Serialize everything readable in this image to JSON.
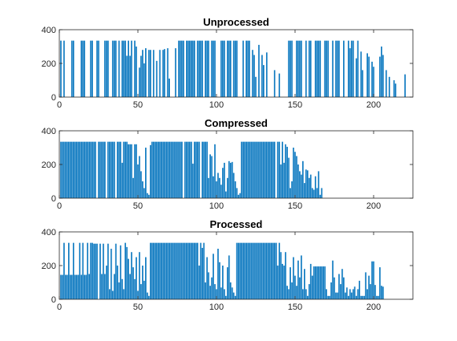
{
  "chart_data": [
    {
      "type": "bar",
      "title": "Unprocessed",
      "xlim": [
        0,
        225
      ],
      "ylim": [
        0,
        400
      ],
      "xticks": [
        0,
        50,
        100,
        150,
        200
      ],
      "yticks": [
        0,
        200,
        400
      ],
      "xtick_labels": [
        "0",
        "50",
        "100",
        "150",
        "200"
      ],
      "ytick_labels": [
        "0",
        "200",
        "400"
      ],
      "bar_color": "#0072BD",
      "values": [
        335,
        0,
        335,
        0,
        0,
        0,
        0,
        335,
        335,
        0,
        0,
        0,
        0,
        335,
        335,
        335,
        0,
        0,
        0,
        335,
        335,
        0,
        0,
        335,
        335,
        0,
        0,
        0,
        335,
        335,
        335,
        0,
        0,
        335,
        335,
        335,
        0,
        335,
        0,
        335,
        335,
        335,
        245,
        335,
        245,
        335,
        0,
        335,
        300,
        0,
        175,
        245,
        280,
        200,
        290,
        0,
        280,
        280,
        0,
        280,
        0,
        215,
        0,
        280,
        0,
        280,
        285,
        0,
        290,
        110,
        0,
        0,
        0,
        290,
        0,
        335,
        335,
        335,
        335,
        0,
        335,
        335,
        335,
        335,
        335,
        335,
        0,
        335,
        335,
        335,
        335,
        0,
        335,
        335,
        335,
        0,
        335,
        335,
        335,
        0,
        0,
        0,
        335,
        335,
        335,
        0,
        335,
        335,
        335,
        0,
        335,
        335,
        335,
        0,
        0,
        0,
        335,
        0,
        335,
        335,
        335,
        0,
        280,
        250,
        120,
        0,
        310,
        0,
        250,
        190,
        0,
        265,
        0,
        0,
        0,
        0,
        160,
        0,
        0,
        140,
        0,
        0,
        0,
        0,
        0,
        335,
        335,
        335,
        0,
        0,
        335,
        335,
        335,
        335,
        0,
        0,
        335,
        0,
        335,
        335,
        0,
        0,
        335,
        335,
        335,
        335,
        0,
        0,
        335,
        335,
        335,
        0,
        0,
        335,
        0,
        335,
        335,
        335,
        0,
        0,
        335,
        0,
        0,
        335,
        290,
        335,
        335,
        0,
        230,
        335,
        0,
        270,
        160,
        0,
        0,
        260,
        240,
        0,
        210,
        180,
        0,
        0,
        0,
        240,
        300,
        250,
        0,
        160,
        0,
        120,
        0,
        0,
        100,
        80,
        0,
        0,
        0,
        0,
        0,
        135
      ]
    },
    {
      "type": "bar",
      "title": "Compressed",
      "xlim": [
        0,
        225
      ],
      "ylim": [
        0,
        400
      ],
      "xticks": [
        0,
        50,
        100,
        150,
        200
      ],
      "yticks": [
        0,
        200,
        400
      ],
      "xtick_labels": [
        "0",
        "50",
        "100",
        "150",
        "200"
      ],
      "ytick_labels": [
        "0",
        "200",
        "400"
      ],
      "bar_color": "#0072BD",
      "values": [
        335,
        335,
        335,
        335,
        335,
        335,
        335,
        335,
        335,
        335,
        335,
        335,
        335,
        335,
        335,
        335,
        335,
        335,
        335,
        335,
        335,
        335,
        335,
        0,
        335,
        335,
        335,
        335,
        335,
        0,
        335,
        335,
        335,
        335,
        335,
        0,
        335,
        335,
        335,
        210,
        335,
        335,
        335,
        320,
        320,
        320,
        120,
        320,
        320,
        200,
        250,
        160,
        100,
        60,
        300,
        30,
        20,
        315,
        335,
        335,
        335,
        335,
        335,
        335,
        335,
        335,
        335,
        335,
        335,
        335,
        335,
        335,
        335,
        335,
        335,
        335,
        335,
        335,
        0,
        335,
        335,
        335,
        335,
        335,
        205,
        335,
        335,
        335,
        335,
        0,
        335,
        335,
        335,
        335,
        120,
        260,
        250,
        130,
        320,
        100,
        150,
        120,
        80,
        180,
        210,
        40,
        120,
        220,
        210,
        215,
        150,
        100,
        60,
        20,
        30,
        335,
        335,
        335,
        335,
        335,
        335,
        335,
        335,
        335,
        335,
        335,
        335,
        335,
        335,
        335,
        335,
        335,
        335,
        335,
        335,
        335,
        335,
        0,
        335,
        335,
        200,
        335,
        210,
        320,
        305,
        240,
        60,
        100,
        300,
        275,
        250,
        200,
        160,
        140,
        220,
        90,
        170,
        165,
        120,
        140,
        60,
        50,
        130,
        60,
        160,
        20,
        60
      ]
    },
    {
      "type": "bar",
      "title": "Processed",
      "xlim": [
        0,
        225
      ],
      "ylim": [
        0,
        400
      ],
      "xticks": [
        0,
        50,
        100,
        150,
        200
      ],
      "yticks": [
        0,
        200,
        400
      ],
      "xtick_labels": [
        "0",
        "50",
        "100",
        "150",
        "200"
      ],
      "ytick_labels": [
        "0",
        "200",
        "400"
      ],
      "bar_color": "#0072BD",
      "values": [
        145,
        145,
        335,
        145,
        145,
        335,
        145,
        145,
        335,
        145,
        145,
        145,
        335,
        145,
        335,
        145,
        145,
        335,
        150,
        335,
        335,
        330,
        330,
        330,
        0,
        330,
        150,
        330,
        150,
        200,
        330,
        60,
        300,
        50,
        150,
        330,
        200,
        100,
        320,
        120,
        60,
        335,
        310,
        240,
        150,
        280,
        190,
        120,
        250,
        50,
        280,
        90,
        200,
        110,
        250,
        40,
        20,
        335,
        335,
        335,
        335,
        335,
        335,
        335,
        335,
        335,
        335,
        335,
        335,
        335,
        335,
        335,
        335,
        335,
        335,
        335,
        335,
        335,
        335,
        335,
        335,
        335,
        335,
        335,
        335,
        335,
        335,
        335,
        200,
        335,
        305,
        335,
        100,
        250,
        160,
        80,
        130,
        270,
        90,
        60,
        300,
        220,
        70,
        200,
        60,
        20,
        190,
        260,
        100,
        70,
        40,
        20,
        335,
        335,
        335,
        335,
        335,
        335,
        335,
        335,
        335,
        335,
        335,
        335,
        335,
        335,
        335,
        335,
        335,
        335,
        335,
        335,
        335,
        335,
        335,
        335,
        335,
        335,
        200,
        335,
        280,
        210,
        200,
        280,
        80,
        60,
        190,
        100,
        250,
        140,
        80,
        230,
        130,
        260,
        60,
        180,
        60,
        20,
        90,
        210,
        140,
        195,
        195,
        195,
        195,
        195,
        195,
        195,
        195,
        60,
        20,
        20,
        100,
        230,
        130,
        40,
        40,
        150,
        90,
        180,
        130,
        40,
        70,
        20,
        60,
        40,
        60,
        75,
        20,
        60,
        110,
        20,
        20,
        20,
        160,
        60,
        140,
        90,
        225,
        225,
        85,
        20,
        20,
        190,
        80,
        75
      ]
    }
  ]
}
